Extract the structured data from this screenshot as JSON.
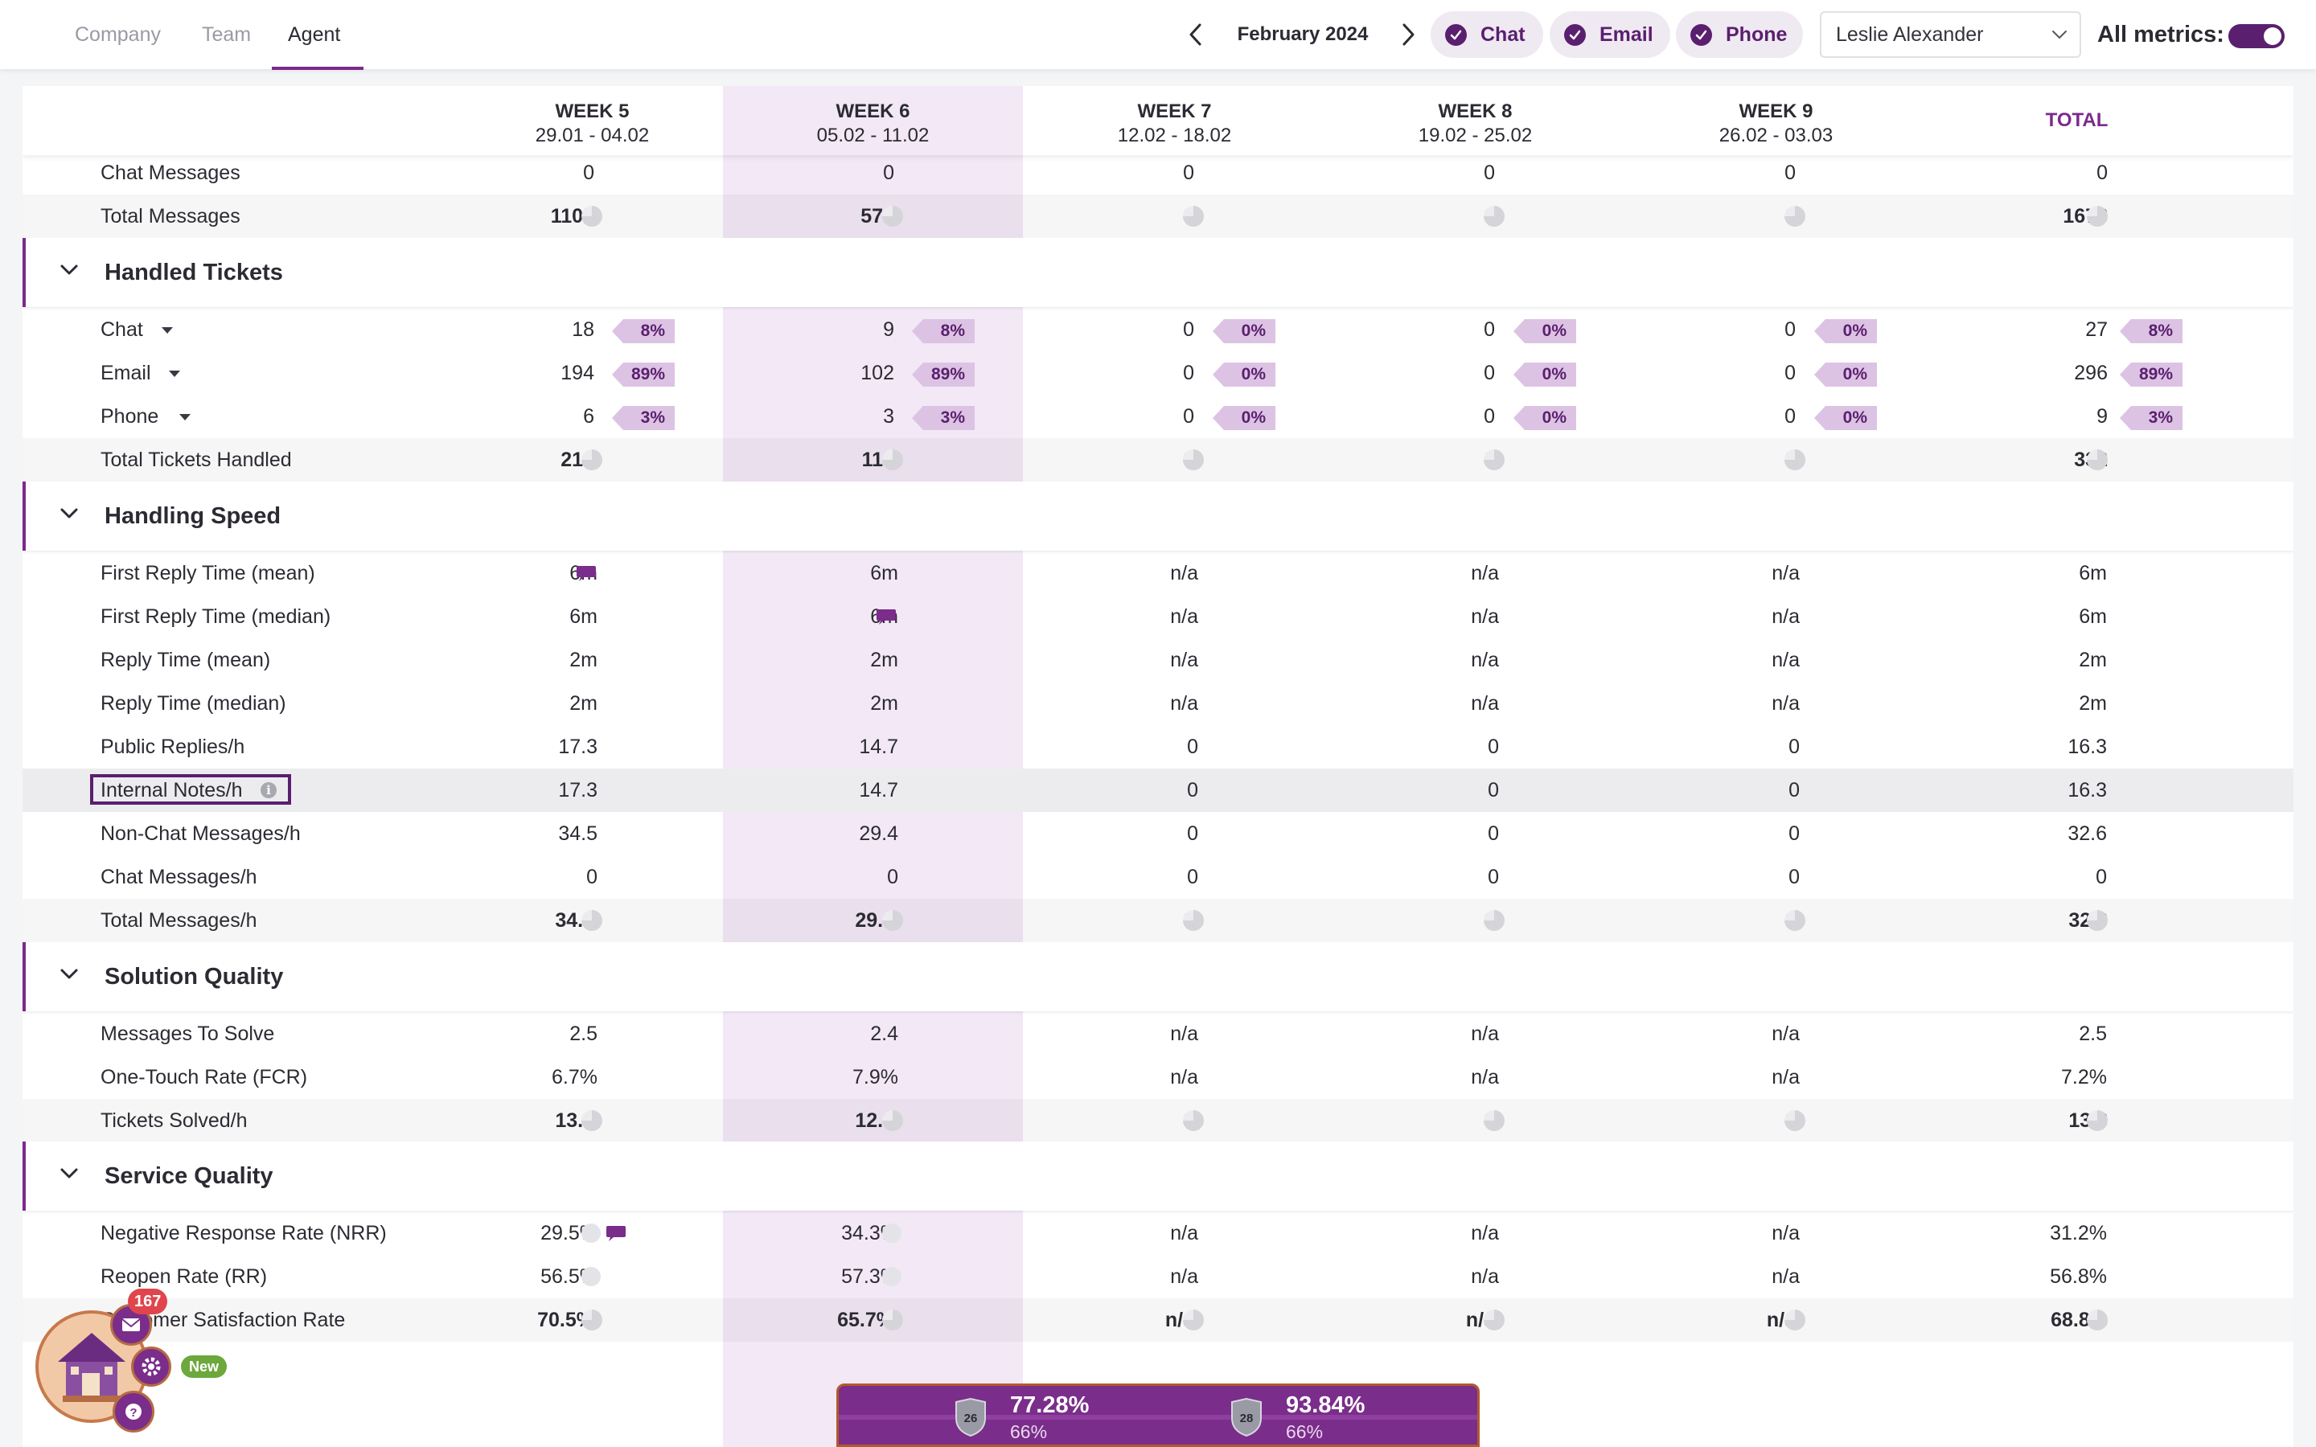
{
  "tabs": [
    {
      "label": "Company"
    },
    {
      "label": "Team"
    },
    {
      "label": "Agent"
    }
  ],
  "header": {
    "month": "February 2024",
    "channels": [
      {
        "label": "Chat",
        "checked": true
      },
      {
        "label": "Email",
        "checked": true
      },
      {
        "label": "Phone",
        "checked": true
      }
    ],
    "agent": "Leslie Alexander",
    "all_metrics_label": "All metrics:",
    "all_metrics_on": true,
    "accent_color": "#5a1f6e"
  },
  "columns": [
    {
      "week": "WEEK 5",
      "range": "29.01 - 04.02"
    },
    {
      "week": "WEEK 6",
      "range": "05.02 - 11.02"
    },
    {
      "week": "WEEK 7",
      "range": "12.02 - 18.02"
    },
    {
      "week": "WEEK 8",
      "range": "19.02 - 25.02"
    },
    {
      "week": "WEEK 9",
      "range": "26.02 - 03.03"
    },
    {
      "week": "TOTAL"
    }
  ],
  "messages": {
    "chat_messages": {
      "label": "Chat Messages",
      "values": [
        "0",
        "0",
        "0",
        "0",
        "0",
        "0"
      ]
    },
    "total_messages": {
      "label": "Total Messages",
      "values": [
        "1104",
        "574",
        "0",
        "0",
        "0",
        "1678"
      ]
    }
  },
  "handled_tickets": {
    "title": "Handled Tickets",
    "chat": {
      "label": "Chat",
      "values": [
        "18",
        "9",
        "0",
        "0",
        "0",
        "27"
      ],
      "pcts": [
        "8%",
        "8%",
        "0%",
        "0%",
        "0%",
        "8%"
      ]
    },
    "email": {
      "label": "Email",
      "values": [
        "194",
        "102",
        "0",
        "0",
        "0",
        "296"
      ],
      "pcts": [
        "89%",
        "89%",
        "0%",
        "0%",
        "0%",
        "89%"
      ]
    },
    "phone": {
      "label": "Phone",
      "values": [
        "6",
        "3",
        "0",
        "0",
        "0",
        "9"
      ],
      "pcts": [
        "3%",
        "3%",
        "0%",
        "0%",
        "0%",
        "3%"
      ]
    },
    "total": {
      "label": "Total Tickets Handled",
      "values": [
        "218",
        "114",
        "0",
        "0",
        "0",
        "332"
      ]
    }
  },
  "handling_speed": {
    "title": "Handling Speed",
    "first_reply_mean": {
      "label": "First Reply Time (mean)",
      "values": [
        "6m",
        "6m",
        "n/a",
        "n/a",
        "n/a",
        "6m"
      ]
    },
    "first_reply_median": {
      "label": "First Reply Time (median)",
      "values": [
        "6m",
        "6m",
        "n/a",
        "n/a",
        "n/a",
        "6m"
      ]
    },
    "reply_mean": {
      "label": "Reply Time (mean)",
      "values": [
        "2m",
        "2m",
        "n/a",
        "n/a",
        "n/a",
        "2m"
      ]
    },
    "reply_median": {
      "label": "Reply Time (median)",
      "values": [
        "2m",
        "2m",
        "n/a",
        "n/a",
        "n/a",
        "2m"
      ]
    },
    "public_replies": {
      "label": "Public Replies/h",
      "values": [
        "17.3",
        "14.7",
        "0",
        "0",
        "0",
        "16.3"
      ]
    },
    "internal_notes": {
      "label": "Internal Notes/h",
      "values": [
        "17.3",
        "14.7",
        "0",
        "0",
        "0",
        "16.3"
      ]
    },
    "non_chat": {
      "label": "Non-Chat Messages/h",
      "values": [
        "34.5",
        "29.4",
        "0",
        "0",
        "0",
        "32.6"
      ]
    },
    "chat_messages": {
      "label": "Chat Messages/h",
      "values": [
        "0",
        "0",
        "0",
        "0",
        "0",
        "0"
      ]
    },
    "total": {
      "label": "Total Messages/h",
      "values": [
        "34.5",
        "29.4",
        "0",
        "0",
        "0",
        "32.6"
      ]
    }
  },
  "solution_quality": {
    "title": "Solution Quality",
    "messages_to_solve": {
      "label": "Messages To Solve",
      "values": [
        "2.5",
        "2.4",
        "n/a",
        "n/a",
        "n/a",
        "2.5"
      ]
    },
    "fcr": {
      "label": "One-Touch Rate (FCR)",
      "values": [
        "6.7%",
        "7.9%",
        "n/a",
        "n/a",
        "n/a",
        "7.2%"
      ]
    },
    "solved": {
      "label": "Tickets Solved/h",
      "values": [
        "13.9",
        "12.3",
        "0",
        "0",
        "0",
        "13.3"
      ]
    }
  },
  "service_quality": {
    "title": "Service Quality",
    "nrr": {
      "label": "Negative Response Rate (NRR)",
      "values": [
        "29.5%",
        "34.3%",
        "n/a",
        "n/a",
        "n/a",
        "31.2%"
      ]
    },
    "rr": {
      "label": "Reopen Rate (RR)",
      "values": [
        "56.5%",
        "57.3%",
        "n/a",
        "n/a",
        "n/a",
        "56.8%"
      ]
    },
    "csat": {
      "label": "Customer Satisfaction Rate",
      "values": [
        "70.5%",
        "65.7%",
        "n/a",
        "n/a",
        "n/a",
        "68.8%"
      ]
    }
  },
  "widgets": {
    "mail_count": "167",
    "new_label": "New",
    "rank_1": "26",
    "score_1": "77.28%",
    "sub_1": "66%",
    "rank_2": "28",
    "score_2": "93.84%",
    "sub_2": "66%"
  }
}
